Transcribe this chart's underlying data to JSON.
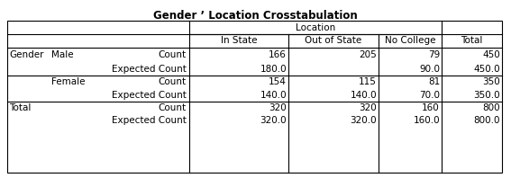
{
  "title": "Gender ’ Location Crosstabulation",
  "bg_color": "#ffffff",
  "title_fontsize": 8.5,
  "cell_fontsize": 7.5,
  "font_family": "DejaVu Sans",
  "table": {
    "rows": [
      [
        "",
        "",
        "",
        "Location",
        "",
        "",
        ""
      ],
      [
        "",
        "",
        "",
        "In State",
        "Out of State",
        "No College",
        "Total"
      ],
      [
        "Gender",
        "Male",
        "Count",
        "166",
        "205",
        "79",
        "450"
      ],
      [
        "",
        "",
        "Expected Count",
        "180.0",
        "",
        "90.0",
        "450.0"
      ],
      [
        "",
        "Female",
        "Count",
        "154",
        "115",
        "81",
        "350"
      ],
      [
        "",
        "",
        "Expected Count",
        "140.0",
        "140.0",
        "70.0",
        "350.0"
      ],
      [
        "Total",
        "",
        "Count",
        "320",
        "320",
        "160",
        "800"
      ],
      [
        "",
        "",
        "Expected Count",
        "320.0",
        "320.0",
        "160.0",
        "800.0"
      ]
    ]
  }
}
